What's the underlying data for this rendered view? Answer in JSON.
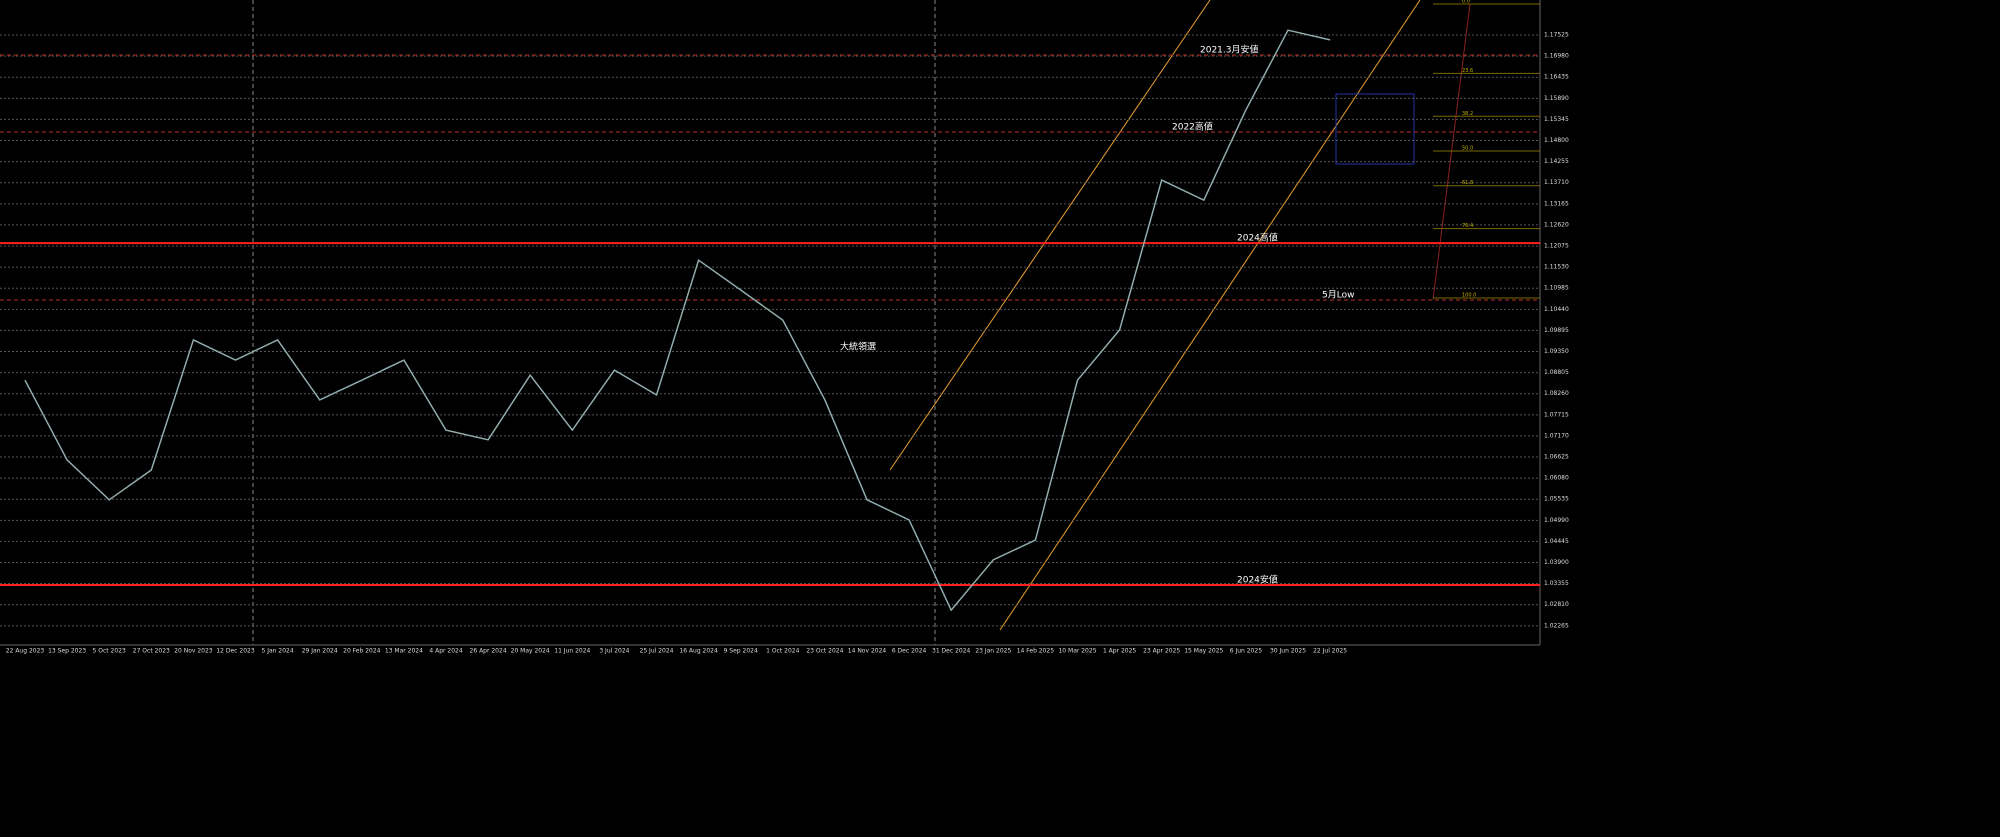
{
  "chart_data": {
    "type": "line",
    "categories": [
      "22 Aug 2023",
      "13 Sep 2023",
      "5 Oct 2023",
      "27 Oct 2023",
      "20 Nov 2023",
      "12 Dec 2023",
      "5 Jan 2024",
      "29 Jan 2024",
      "20 Feb 2024",
      "13 Mar 2024",
      "4 Apr 2024",
      "26 Apr 2024",
      "20 May 2024",
      "11 Jun 2024",
      "3 Jul 2024",
      "25 Jul 2024",
      "16 Aug 2024",
      "9 Sep 2024",
      "1 Oct 2024",
      "23 Oct 2024",
      "14 Nov 2024",
      "6 Dec 2024",
      "31 Dec 2024",
      "23 Jan 2025",
      "14 Feb 2025",
      "10 Mar 2025",
      "1 Apr 2025",
      "23 Apr 2025",
      "15 May 2025",
      "6 Jun 2025",
      "30 Jun 2025",
      "22 Jul 2025"
    ],
    "series": [
      {
        "color": "#4da6ff",
        "values": [
          1.0861,
          1.0655,
          1.0552,
          1.0629,
          1.0965,
          1.0913,
          1.0965,
          1.081,
          1.0861,
          1.0913,
          1.0732,
          1.0707,
          1.0874,
          1.0732,
          1.0887,
          1.0823,
          1.1171,
          1.1094,
          1.1016,
          1.081,
          1.0552,
          1.05,
          1.0267,
          1.0397,
          1.0448,
          1.0861,
          1.0991,
          1.1378,
          1.1326,
          1.1559,
          1.1765,
          1.174
        ]
      }
    ],
    "ylim": [
      1.0177,
      1.1843
    ],
    "yticks": [
      1.02265,
      {
        "value": 1.0281,
        "label": "1.02810"
      },
      1.03355,
      {
        "value": 1.039,
        "label": "1.03900"
      },
      1.04445,
      {
        "value": 1.0499,
        "label": "1.04990"
      },
      1.05535,
      {
        "value": 1.0608,
        "label": "1.06080"
      },
      1.06625,
      {
        "value": 1.0717,
        "label": "1.07170"
      },
      1.07715,
      {
        "value": 1.0826,
        "label": "1.08260"
      },
      1.08805,
      {
        "value": 1.0935,
        "label": "1.09350"
      },
      1.09895,
      {
        "value": 1.1044,
        "label": "1.10440"
      },
      1.10985,
      {
        "value": 1.1153,
        "label": "1.11530"
      },
      1.12075,
      {
        "value": 1.1262,
        "label": "1.12620"
      },
      1.13165,
      {
        "value": 1.1371,
        "label": "1.13710"
      },
      1.14255,
      {
        "value": 1.148,
        "label": "1.14800"
      },
      1.15345,
      {
        "value": 1.1589,
        "label": "1.15890"
      },
      1.16435,
      {
        "value": 1.1698,
        "label": "1.16980"
      },
      1.17525
    ],
    "grid": true,
    "levels": [
      {
        "label": "2021.3月安値",
        "value": 1.1701,
        "color": "#c0302a"
      },
      {
        "label": "2022高値",
        "value": 1.1502,
        "color": "#c0302a"
      },
      {
        "label": "2024高値",
        "value": 1.1215,
        "color": "#ff2020"
      },
      {
        "label": "5月Low",
        "value": 1.1068,
        "color": "#c0302a"
      },
      {
        "label": "2024安値",
        "value": 1.0332,
        "color": "#ff2020"
      }
    ],
    "annotation": "大統領選",
    "fib": [
      {
        "value": 0,
        "label": "0.0"
      },
      23.6,
      38.2,
      {
        "value": 50,
        "label": "50.0"
      },
      61.8,
      76.4,
      {
        "value": 100,
        "label": "100.0"
      }
    ]
  }
}
